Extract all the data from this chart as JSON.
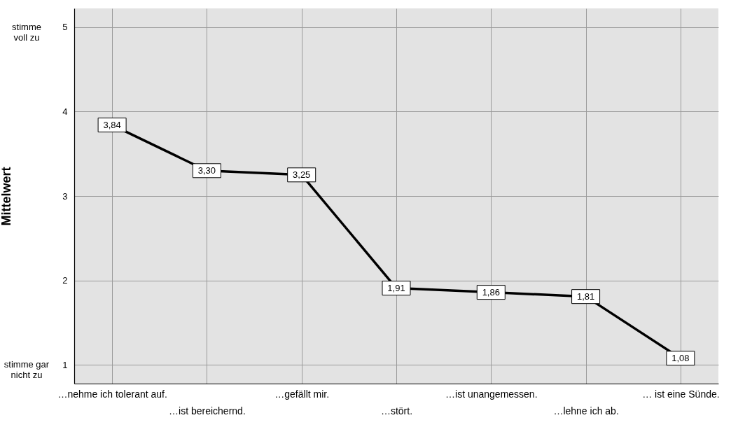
{
  "chart_data": {
    "type": "line",
    "ylabel": "Mittelwert",
    "categories": [
      "…nehme ich tolerant auf.",
      "…ist bereichernd.",
      "…gefällt mir.",
      "…stört.",
      "…ist unangemessen.",
      "…lehne ich ab.",
      "… ist eine Sünde."
    ],
    "series": [
      {
        "color": "#000000",
        "values": [
          3.84,
          3.3,
          3.25,
          1.91,
          1.86,
          1.81,
          1.08
        ],
        "value_labels": [
          "3,84",
          "3,30",
          "3,25",
          "1,91",
          "1,86",
          "1,81",
          "1,08"
        ]
      }
    ],
    "ylim": [
      0.78,
      5.22
    ],
    "yticks": [
      1,
      2,
      3,
      4,
      5
    ],
    "grid": true,
    "line_style": "solid",
    "marker": "square",
    "annotations": [
      "stimme voll zu",
      "stimme gar nicht zu"
    ]
  }
}
